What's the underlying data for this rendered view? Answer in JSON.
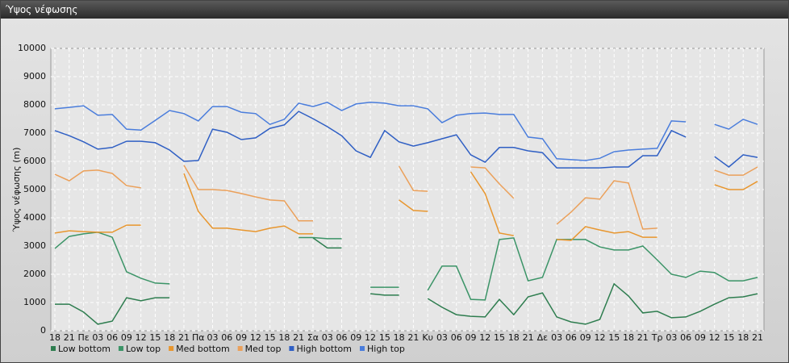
{
  "window_title": "Ύψος νέφωσης",
  "chart_data": {
    "type": "line",
    "y_label": "Ύψος νέφωσης (m)",
    "categories": [
      "18",
      "21",
      "Πε",
      "03",
      "06",
      "09",
      "12",
      "15",
      "18",
      "21",
      "Πα",
      "03",
      "06",
      "09",
      "12",
      "15",
      "18",
      "21",
      "Σα",
      "03",
      "06",
      "09",
      "12",
      "15",
      "18",
      "21",
      "Κυ",
      "03",
      "06",
      "09",
      "12",
      "15",
      "18",
      "21",
      "Δε",
      "03",
      "06",
      "09",
      "12",
      "15",
      "18",
      "21",
      "Τρ",
      "03",
      "06",
      "09",
      "12",
      "15",
      "18",
      "21"
    ],
    "ylim": [
      0,
      10000
    ],
    "yticks": [
      0,
      1000,
      2000,
      3000,
      4000,
      5000,
      6000,
      7000,
      8000,
      9000,
      10000
    ],
    "grid": true,
    "legend": "bottom",
    "series": [
      {
        "name": "Low bottom",
        "color": "#2e7d4f",
        "values": [
          940,
          940,
          660,
          230,
          340,
          1170,
          1060,
          1170,
          1170,
          null,
          null,
          null,
          null,
          null,
          null,
          null,
          null,
          null,
          3290,
          2930,
          2930,
          null,
          1310,
          1260,
          1260,
          null,
          1140,
          830,
          570,
          510,
          490,
          1110,
          570,
          1200,
          1340,
          490,
          310,
          230,
          400,
          1660,
          1230,
          630,
          690,
          460,
          490,
          690,
          940,
          1170,
          1200,
          1310
        ]
      },
      {
        "name": "Low top",
        "color": "#3b9467",
        "values": [
          2910,
          3340,
          3430,
          3490,
          3310,
          2090,
          1860,
          1690,
          1660,
          null,
          null,
          null,
          null,
          null,
          null,
          null,
          null,
          3300,
          3300,
          3260,
          3260,
          null,
          1540,
          1540,
          1540,
          null,
          1430,
          2290,
          2290,
          1110,
          1090,
          3230,
          3290,
          1770,
          1890,
          3230,
          3230,
          3230,
          2970,
          2860,
          2860,
          3000,
          2510,
          2000,
          1890,
          2110,
          2060,
          1770,
          1770,
          1890
        ]
      },
      {
        "name": "Med bottom",
        "color": "#e8962e",
        "values": [
          3460,
          3540,
          3510,
          3490,
          3490,
          3740,
          3740,
          null,
          null,
          5570,
          4230,
          3630,
          3630,
          3570,
          3510,
          3630,
          3710,
          3430,
          3430,
          null,
          null,
          null,
          null,
          null,
          4630,
          4260,
          4230,
          null,
          null,
          5630,
          4860,
          3460,
          3370,
          null,
          null,
          3230,
          3200,
          3690,
          3570,
          3460,
          3510,
          3310,
          3310,
          null,
          null,
          null,
          5170,
          5000,
          5000,
          5290
        ]
      },
      {
        "name": "Med top",
        "color": "#eba05a",
        "values": [
          5540,
          5310,
          5660,
          5690,
          5570,
          5140,
          5060,
          null,
          null,
          5860,
          5000,
          5000,
          4970,
          4860,
          4740,
          4630,
          4600,
          3890,
          3890,
          null,
          null,
          null,
          null,
          null,
          5830,
          4970,
          4940,
          null,
          null,
          5800,
          5770,
          5200,
          4690,
          null,
          null,
          3770,
          4200,
          4710,
          4660,
          5310,
          5230,
          3600,
          3630,
          null,
          null,
          null,
          5690,
          5510,
          5510,
          5800
        ]
      },
      {
        "name": "High bottom",
        "color": "#2f5fc4",
        "values": [
          7090,
          6910,
          6690,
          6430,
          6490,
          6710,
          6710,
          6660,
          6400,
          6000,
          6030,
          7140,
          7030,
          6770,
          6830,
          7170,
          7290,
          7770,
          7510,
          7230,
          6910,
          6370,
          6140,
          7090,
          6690,
          6540,
          6660,
          6800,
          6940,
          6230,
          5970,
          6490,
          6490,
          6370,
          6310,
          5770,
          5770,
          5770,
          5770,
          5800,
          5800,
          6200,
          6200,
          7090,
          6860,
          null,
          6170,
          5800,
          6230,
          6140
        ]
      },
      {
        "name": "High top",
        "color": "#4a7ddc",
        "values": [
          7860,
          7910,
          7970,
          7630,
          7660,
          7140,
          7110,
          7450,
          7800,
          7690,
          7430,
          7940,
          7940,
          7740,
          7690,
          7310,
          7490,
          8060,
          7940,
          8090,
          7800,
          8030,
          8090,
          8060,
          7970,
          7970,
          7860,
          7370,
          7630,
          7690,
          7710,
          7660,
          7660,
          6860,
          6800,
          6090,
          6060,
          6030,
          6110,
          6340,
          6400,
          6430,
          6460,
          7430,
          7400,
          null,
          7310,
          7140,
          7490,
          7310
        ]
      }
    ]
  }
}
